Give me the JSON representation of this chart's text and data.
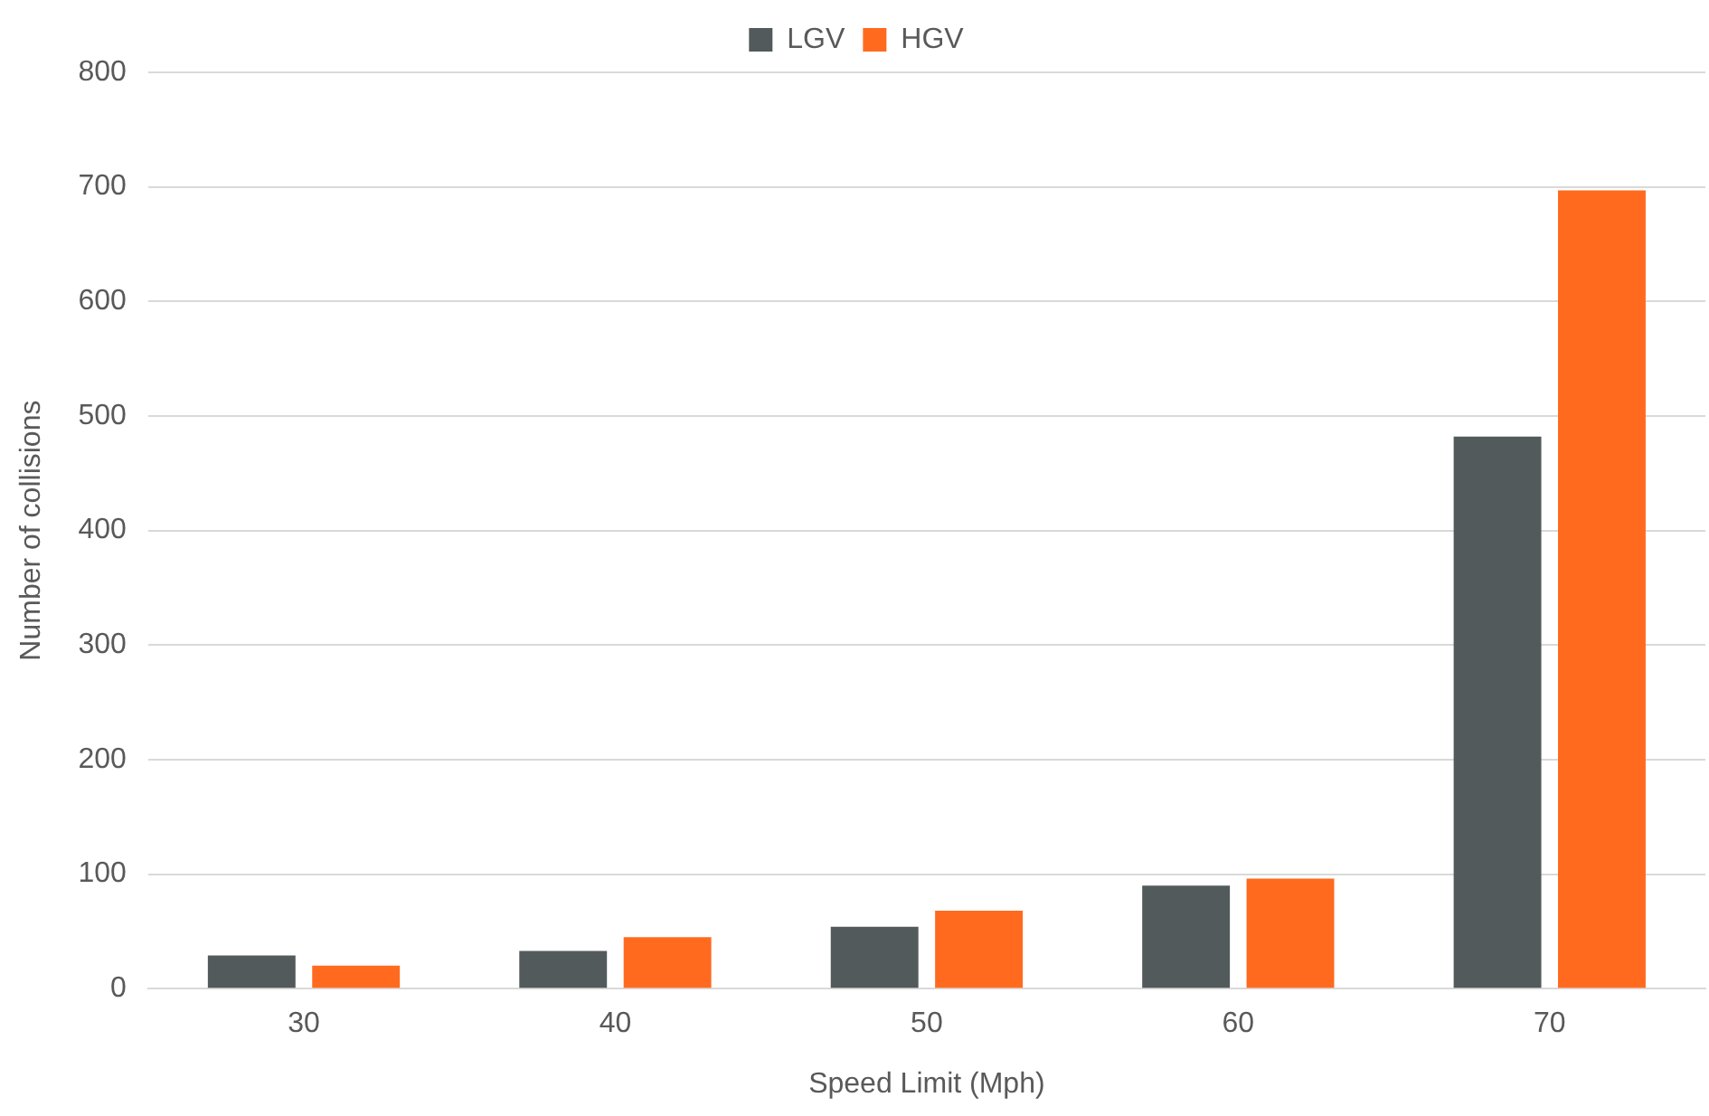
{
  "chart_data": {
    "type": "bar",
    "xlabel": "Speed Limit (Mph)",
    "ylabel": "Number of collisions",
    "categories": [
      "30",
      "40",
      "50",
      "60",
      "70"
    ],
    "series": [
      {
        "name": "LGV",
        "color": "#525a5b",
        "values": [
          29,
          33,
          54,
          90,
          482
        ]
      },
      {
        "name": "HGV",
        "color": "#ff6a1f",
        "values": [
          20,
          45,
          68,
          96,
          697
        ]
      }
    ],
    "ylim": [
      0,
      800
    ],
    "yticks": [
      0,
      100,
      200,
      300,
      400,
      500,
      600,
      700,
      800
    ],
    "grid": "y",
    "legend": "top"
  }
}
